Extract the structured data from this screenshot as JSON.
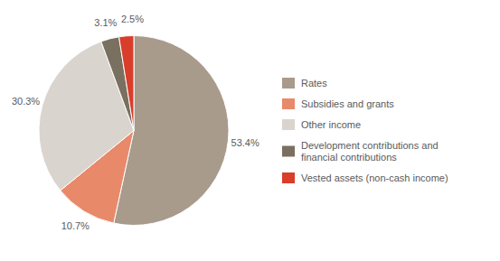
{
  "chart_data": {
    "type": "pie",
    "categories": [
      "Rates",
      "Subsidies and grants",
      "Other income",
      "Development contributions and\nfinancial contributions",
      "Vested assets (non-cash income)"
    ],
    "values": [
      53.4,
      10.7,
      30.3,
      3.1,
      2.5
    ],
    "value_labels": [
      "53.4%",
      "10.7%",
      "30.3%",
      "3.1%",
      "2.5%"
    ],
    "colors": [
      "#a89b8c",
      "#e8896a",
      "#d9d4ce",
      "#7a7060",
      "#d93d2b"
    ],
    "data_labels": true,
    "legend": "right"
  }
}
